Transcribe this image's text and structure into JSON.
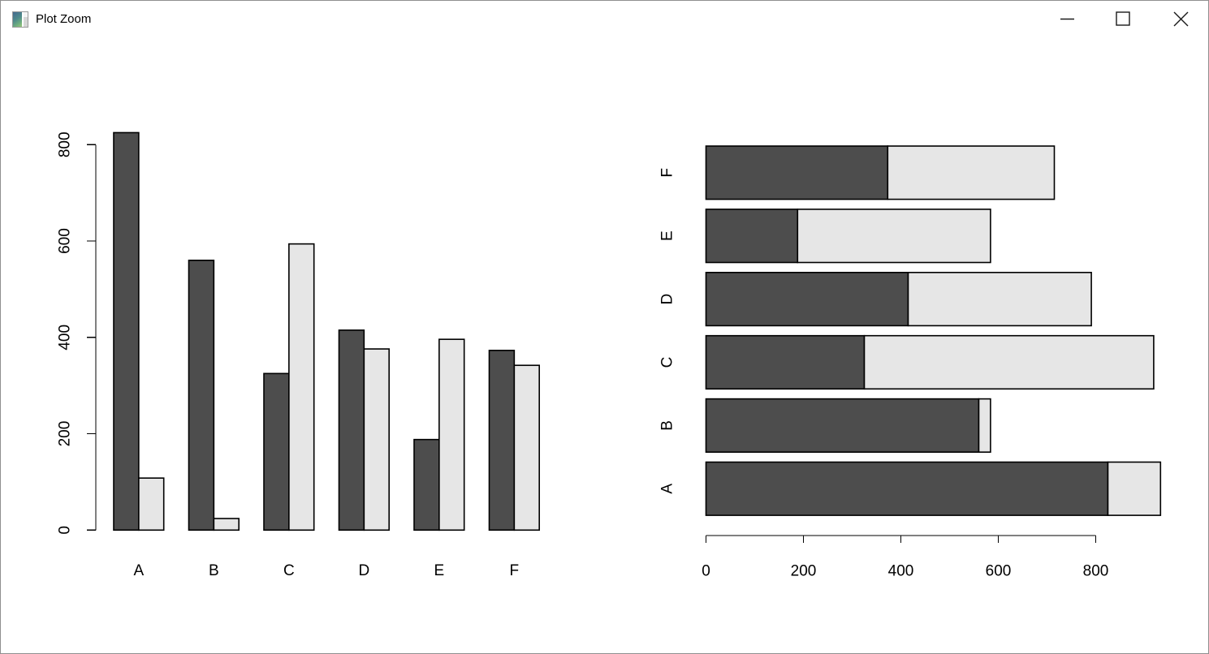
{
  "window": {
    "title": "Plot Zoom",
    "controls": {
      "minimize": "Minimize",
      "maximize": "Maximize",
      "close": "Close"
    },
    "icon": "plot-thumbnail-icon"
  },
  "chart_data": [
    {
      "type": "bar",
      "orientation": "vertical",
      "grouped": true,
      "title": "",
      "xlabel": "",
      "ylabel": "",
      "categories": [
        "A",
        "B",
        "C",
        "D",
        "E",
        "F"
      ],
      "series": [
        {
          "name": "dark",
          "color": "#4D4D4D",
          "values": [
            825,
            560,
            325,
            415,
            188,
            373
          ]
        },
        {
          "name": "light",
          "color": "#E6E6E6",
          "values": [
            108,
            24,
            594,
            376,
            396,
            342
          ]
        }
      ],
      "yticks": [
        0,
        200,
        400,
        600,
        800
      ],
      "ylim": [
        0,
        833
      ],
      "bar_border_color": "#000000",
      "grid": false,
      "legend": "none"
    },
    {
      "type": "bar",
      "orientation": "horizontal",
      "stacked": true,
      "title": "",
      "xlabel": "",
      "ylabel": "",
      "categories": [
        "A",
        "B",
        "C",
        "D",
        "E",
        "F"
      ],
      "category_order": "bottom-to-top",
      "series": [
        {
          "name": "dark",
          "color": "#4D4D4D",
          "values": [
            825,
            560,
            325,
            415,
            188,
            373
          ]
        },
        {
          "name": "light",
          "color": "#E6E6E6",
          "values": [
            108,
            24,
            594,
            376,
            396,
            342
          ]
        }
      ],
      "totals": [
        933,
        584,
        919,
        791,
        584,
        715
      ],
      "xticks": [
        0,
        200,
        400,
        600,
        800
      ],
      "xlim": [
        0,
        960
      ],
      "bar_border_color": "#000000",
      "grid": false,
      "legend": "none"
    }
  ]
}
